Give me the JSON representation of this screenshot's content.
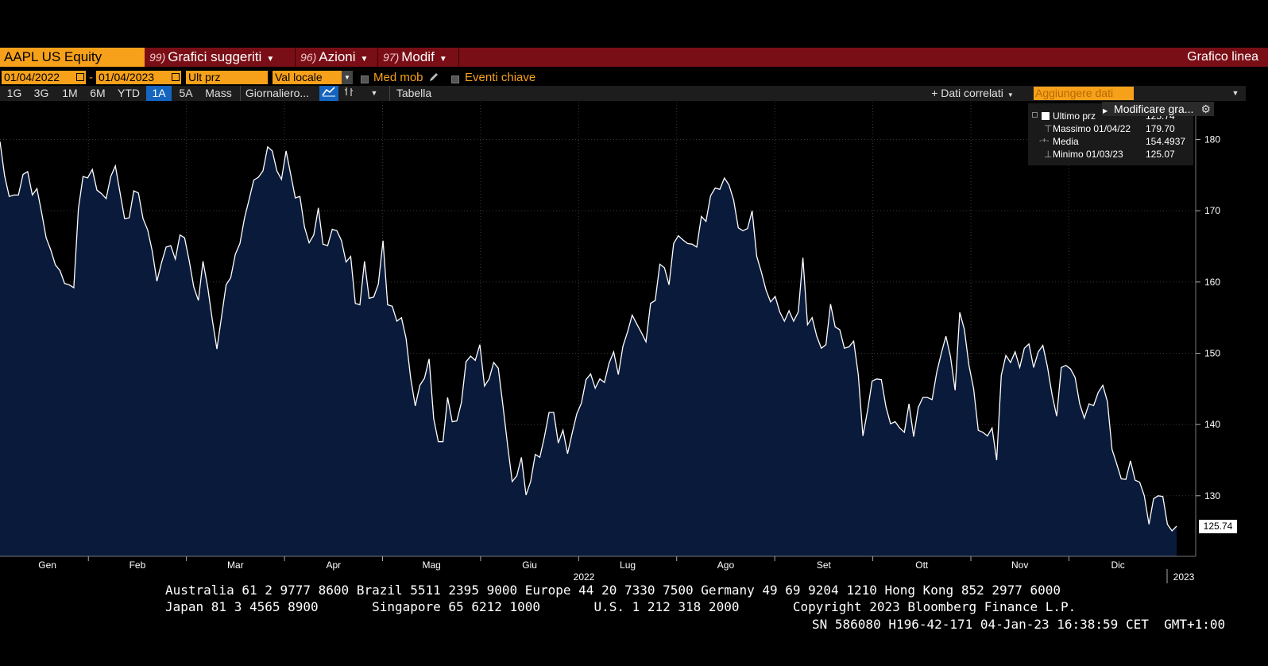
{
  "header": {
    "ticker": "AAPL US Equity",
    "buttons": [
      {
        "num": "99)",
        "label": "Grafici suggeriti"
      },
      {
        "num": "96)",
        "label": "Azioni"
      },
      {
        "num": "97)",
        "label": "Modif"
      }
    ],
    "right_label": "Grafico linea"
  },
  "controls": {
    "start_date": "01/04/2022",
    "end_date": "01/04/2023",
    "date_sep": "-",
    "price_field": "Ult prz",
    "currency": "Val locale",
    "moving_avg": "Med mob",
    "events": "Eventi chiave"
  },
  "toolbar": {
    "ranges": [
      "1G",
      "3G",
      "1M",
      "6M",
      "YTD",
      "1A",
      "5A",
      "Mass"
    ],
    "selected_range": "1A",
    "frequency": "Giornaliero...",
    "table": "Tabella",
    "related": "+ Dati correlati",
    "add_data_placeholder": "Aggiungere dati",
    "modify": "Modificare gra..."
  },
  "legend": {
    "rows": [
      {
        "label": "Ultimo prz",
        "value": "125.74"
      },
      {
        "label": "Massimo 01/04/22",
        "value": "179.70"
      },
      {
        "label": "Media",
        "value": "154.4937"
      },
      {
        "label": "Minimo 01/03/23",
        "value": "125.07"
      }
    ]
  },
  "chart_data": {
    "type": "area",
    "series": [
      {
        "name": "Ultimo prz",
        "x_start": "2022-01-04",
        "x_end": "2023-01-04",
        "values": [
          179.7,
          174.9,
          172.0,
          172.2,
          172.2,
          175.1,
          175.5,
          172.2,
          173.1,
          169.8,
          166.2,
          164.5,
          162.4,
          161.6,
          159.8,
          159.6,
          159.2,
          170.3,
          174.8,
          174.6,
          175.8,
          172.9,
          172.4,
          171.7,
          174.8,
          176.3,
          172.6,
          168.9,
          169.0,
          172.8,
          172.5,
          168.9,
          167.3,
          164.3,
          160.1,
          162.7,
          164.9,
          165.1,
          163.2,
          166.6,
          166.2,
          163.0,
          159.3,
          157.4,
          162.9,
          159.3,
          154.7,
          150.6,
          155.1,
          159.6,
          160.6,
          163.9,
          165.4,
          169.0,
          171.6,
          174.3,
          174.7,
          175.6,
          178.96,
          178.4,
          175.6,
          174.4,
          178.4,
          175.1,
          171.8,
          172.0,
          167.7,
          165.5,
          166.6,
          170.4,
          165.3,
          165.1,
          167.4,
          167.2,
          165.8,
          162.8,
          163.6,
          157.0,
          156.8,
          162.9,
          157.7,
          157.9,
          159.7,
          165.8,
          156.8,
          156.6,
          154.5,
          155.0,
          152.1,
          146.5,
          142.6,
          145.5,
          146.5,
          149.2,
          140.8,
          137.6,
          137.6,
          143.8,
          140.4,
          140.5,
          143.1,
          148.8,
          149.6,
          149.0,
          151.2,
          145.4,
          146.4,
          148.7,
          147.9,
          142.6,
          137.1,
          132.0,
          132.8,
          135.4,
          130.1,
          132.0,
          135.8,
          135.4,
          138.3,
          141.7,
          141.7,
          137.4,
          139.2,
          135.9,
          138.8,
          141.5,
          143.0,
          146.3,
          147.1,
          145.1,
          146.4,
          145.9,
          148.6,
          150.2,
          147.0,
          151.0,
          153.0,
          155.35,
          154.1,
          152.9,
          151.6,
          157.0,
          157.4,
          162.5,
          162.0,
          159.6,
          165.4,
          166.5,
          165.9,
          165.4,
          165.3,
          164.9,
          169.2,
          168.5,
          172.1,
          173.2,
          173.0,
          174.6,
          173.6,
          171.5,
          167.6,
          167.2,
          167.5,
          170.0,
          163.6,
          161.4,
          158.9,
          157.2,
          157.96,
          155.8,
          154.5,
          155.96,
          154.5,
          155.8,
          163.4,
          154.0,
          155.0,
          152.4,
          150.7,
          151.2,
          156.9,
          153.7,
          153.3,
          150.7,
          150.9,
          151.7,
          147.0,
          138.4,
          141.9,
          146.1,
          146.4,
          146.3,
          142.5,
          140.1,
          140.4,
          139.5,
          138.9,
          142.9,
          138.3,
          142.4,
          143.8,
          143.8,
          143.5,
          147.3,
          150.0,
          152.4,
          149.5,
          144.8,
          155.74,
          153.34,
          148.3,
          145.0,
          139.2,
          138.9,
          138.4,
          139.5,
          135.0,
          146.9,
          149.7,
          148.7,
          150.2,
          148.0,
          150.7,
          151.3,
          148.0,
          150.18,
          151.1,
          148.1,
          144.2,
          141.17,
          148.0,
          148.3,
          147.8,
          146.6,
          142.9,
          140.9,
          142.9,
          142.65,
          144.5,
          145.5,
          143.2,
          136.5,
          134.5,
          132.37,
          132.3,
          134.9,
          132.2,
          131.9,
          130.0,
          126.0,
          129.6,
          130.0,
          129.9,
          126.0,
          125.07,
          125.74
        ]
      }
    ],
    "x_tick_labels": [
      "Gen",
      "Feb",
      "Mar",
      "Apr",
      "Mag",
      "Giu",
      "Lug",
      "Ago",
      "Set",
      "Ott",
      "Nov",
      "Dic"
    ],
    "year_labels": [
      "2022",
      "2023"
    ],
    "y_ticks": [
      130,
      140,
      150,
      160,
      170,
      180
    ],
    "y_range": [
      121.5,
      185.3
    ],
    "last_value_label": "125.74",
    "colors": {
      "line": "#ffffff",
      "fill": "#0a1a3a",
      "background": "#000000"
    }
  },
  "footer": {
    "line1": "Australia 61 2 9777 8600 Brazil 5511 2395 9000 Europe 44 20 7330 7500 Germany 49 69 9204 1210 Hong Kong 852 2977 6000",
    "line2": "Japan 81 3 4565 8900       Singapore 65 6212 1000       U.S. 1 212 318 2000       Copyright 2023 Bloomberg Finance L.P.",
    "line3": "SN 586080 H196-42-171 04-Jan-23 16:38:59 CET  GMT+1:00"
  }
}
